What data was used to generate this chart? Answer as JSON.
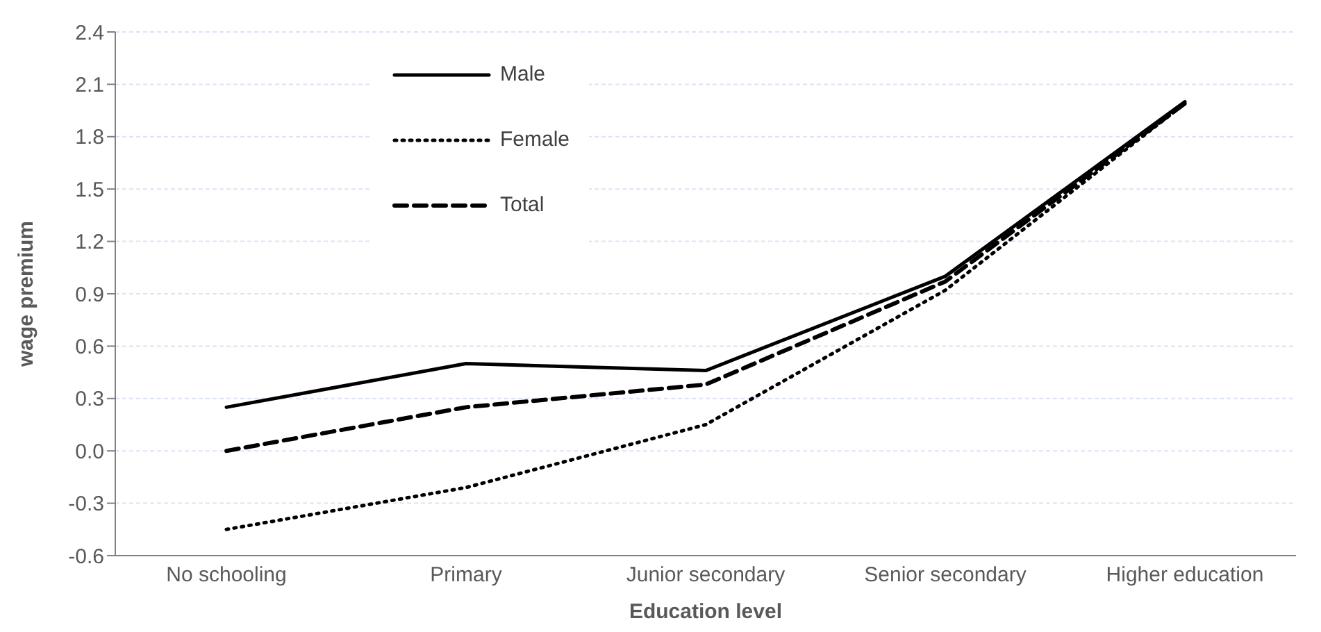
{
  "chart_data": {
    "type": "line",
    "xlabel": "Education level",
    "ylabel": "wage premium",
    "categories": [
      "No schooling",
      "Primary",
      "Junior secondary",
      "Senior secondary",
      "Higher education"
    ],
    "series": [
      {
        "name": "Male",
        "color": "#000000",
        "line_style": "solid",
        "values": [
          0.25,
          0.5,
          0.46,
          1.0,
          2.0
        ]
      },
      {
        "name": "Female",
        "color": "#000000",
        "line_style": "dotted",
        "values": [
          -0.45,
          -0.21,
          0.15,
          0.92,
          1.99
        ]
      },
      {
        "name": "Total",
        "color": "#000000",
        "line_style": "dashed",
        "values": [
          0.0,
          0.25,
          0.38,
          0.97,
          1.99
        ]
      }
    ],
    "ylim": [
      -0.6,
      2.4
    ],
    "yticks": [
      {
        "value": -0.6,
        "label": "-0.6"
      },
      {
        "value": -0.3,
        "label": "-0.3"
      },
      {
        "value": 0,
        "label": "0.0"
      },
      {
        "value": 0.3,
        "label": "0.3"
      },
      {
        "value": 0.6,
        "label": "0.6"
      },
      {
        "value": 0.9,
        "label": "0.9"
      },
      {
        "value": 1.2,
        "label": "1.2"
      },
      {
        "value": 1.5,
        "label": "1.5"
      },
      {
        "value": 1.8,
        "label": "1.8"
      },
      {
        "value": 2.1,
        "label": "2.1"
      },
      {
        "value": 2.4,
        "label": "2.4"
      }
    ],
    "grid": "y",
    "legend": "top left",
    "marker": "none"
  }
}
